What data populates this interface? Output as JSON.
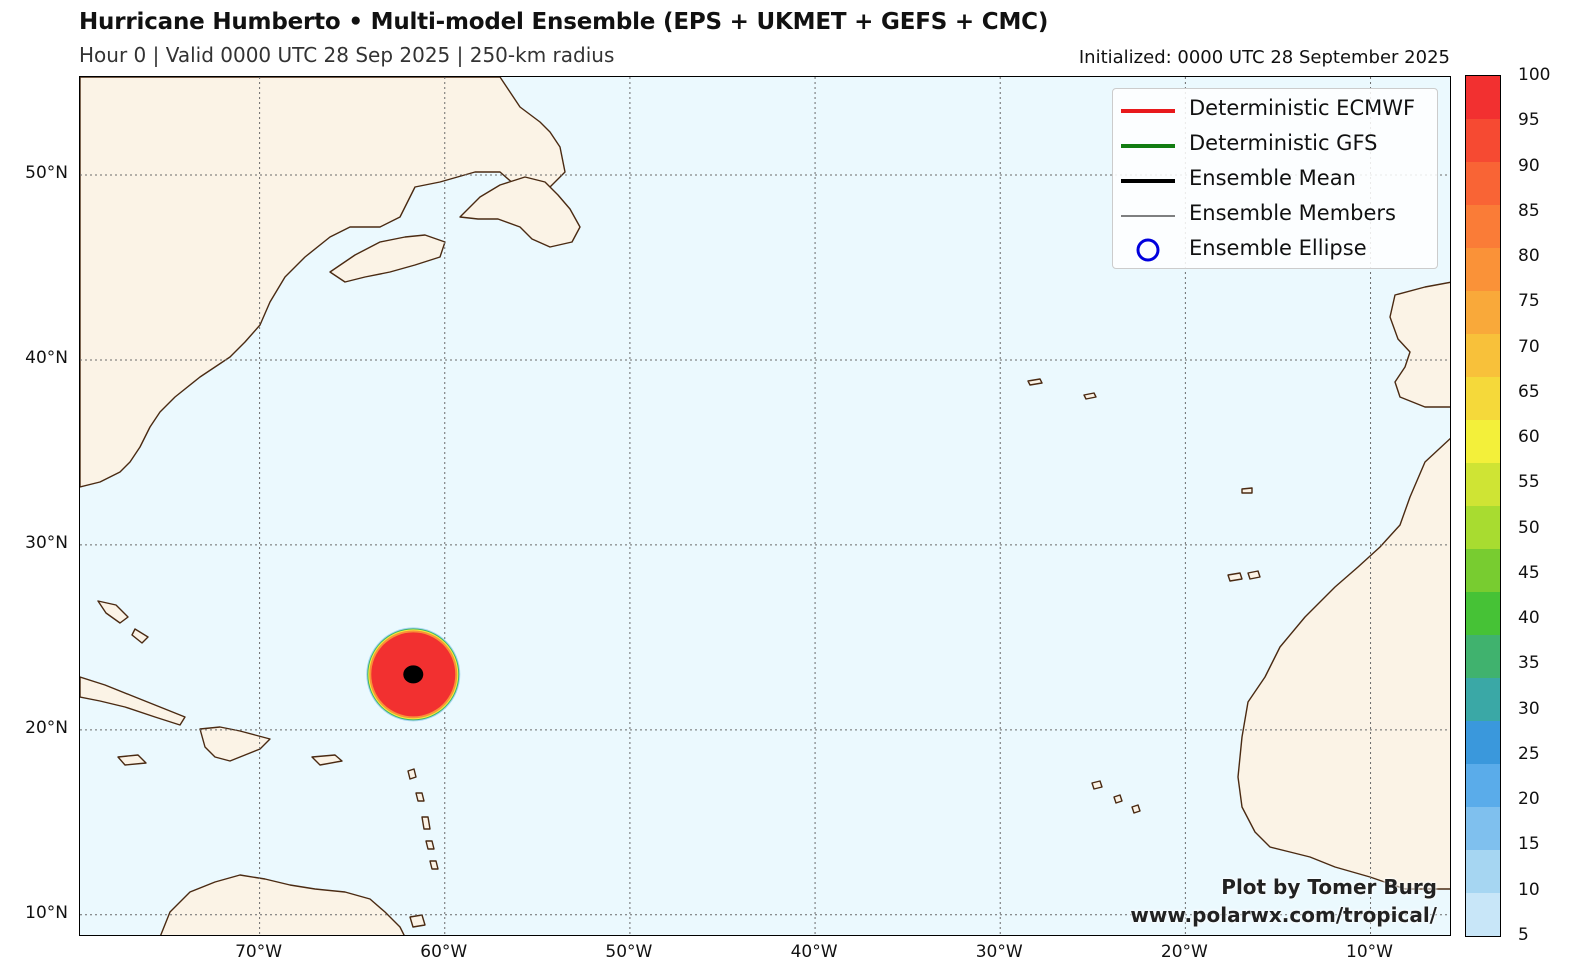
{
  "header": {
    "title": "Hurricane Humberto • Multi-model Ensemble (EPS + UKMET + GEFS + CMC)",
    "subtitle": "Hour 0 | Valid 0000 UTC 28 Sep 2025 | 250-km radius",
    "initialized": "Initialized: 0000 UTC 28 September 2025"
  },
  "map": {
    "lon_range": [
      -79.7,
      -5.6
    ],
    "lat_range": [
      8.8,
      55.3
    ],
    "ocean_color": "#ebf9fe",
    "land_color": "#fbf3e6",
    "coast_color": "#4a2a12",
    "lat_labels": [
      "50°N",
      "40°N",
      "30°N",
      "20°N",
      "10°N"
    ],
    "lat_values": [
      50,
      40,
      30,
      20,
      10
    ],
    "lon_labels": [
      "70°W",
      "60°W",
      "50°W",
      "40°W",
      "30°W",
      "20°W",
      "10°W"
    ],
    "lon_values": [
      -70,
      -60,
      -50,
      -40,
      -30,
      -20,
      -10
    ],
    "storm": {
      "lon": -61.7,
      "lat": 23.0,
      "probability": 100
    }
  },
  "legend": {
    "items": [
      {
        "label": "Deterministic ECMWF",
        "color": "#e8191c",
        "style": "thick-line"
      },
      {
        "label": "Deterministic GFS",
        "color": "#127d12",
        "style": "thick-line"
      },
      {
        "label": "Ensemble Mean",
        "color": "#000000",
        "style": "thick-line"
      },
      {
        "label": "Ensemble Members",
        "color": "#000000",
        "style": "thin-line"
      },
      {
        "label": "Ensemble Ellipse",
        "color": "#0000dd",
        "style": "circle"
      }
    ]
  },
  "credits": {
    "line1": "Plot by Tomer Burg",
    "line2": "www.polarwx.com/tropical/"
  },
  "colorbar": {
    "labels": [
      "100",
      "95",
      "90",
      "85",
      "80",
      "75",
      "70",
      "65",
      "60",
      "55",
      "50",
      "45",
      "40",
      "35",
      "30",
      "25",
      "20",
      "15",
      "10",
      "5"
    ],
    "colors": [
      "#f23030",
      "#f64a32",
      "#f96435",
      "#fa7c37",
      "#fa9238",
      "#f9a93a",
      "#f8c13a",
      "#f5d93a",
      "#f3f03a",
      "#cfe434",
      "#a8dc30",
      "#78cc30",
      "#46c236",
      "#40b26e",
      "#3aa8a6",
      "#3a98dc",
      "#5aacea",
      "#7fc0ee",
      "#a6d6f2",
      "#c8e6f8"
    ]
  }
}
